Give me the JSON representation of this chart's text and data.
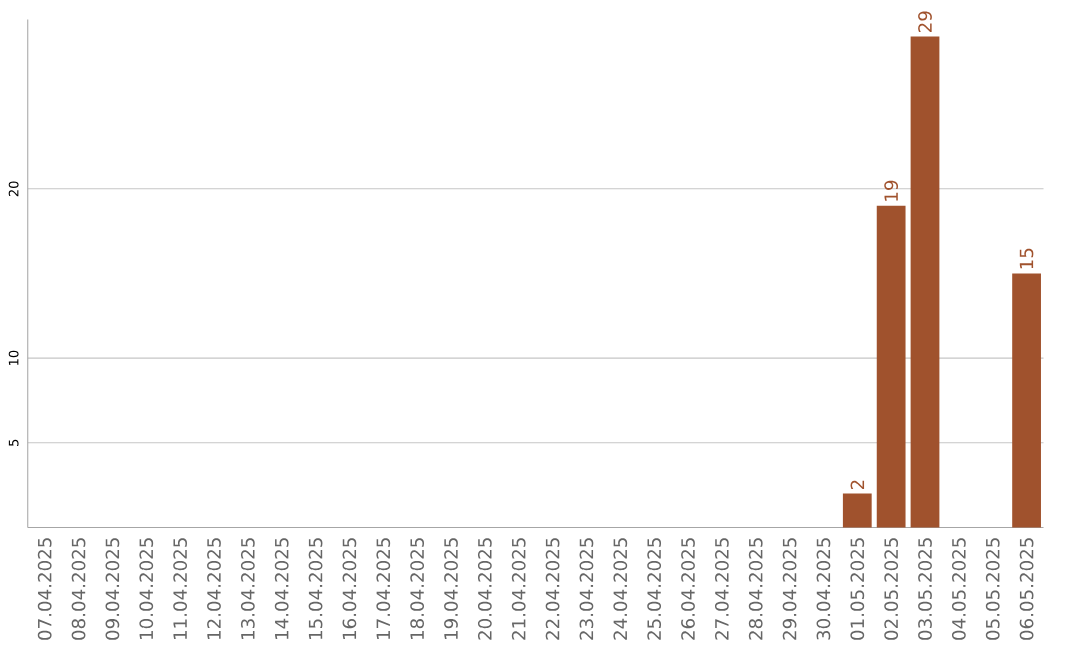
{
  "chart_data": {
    "type": "bar",
    "categories": [
      "07.04.2025",
      "08.04.2025",
      "09.04.2025",
      "10.04.2025",
      "11.04.2025",
      "12.04.2025",
      "13.04.2025",
      "14.04.2025",
      "15.04.2025",
      "16.04.2025",
      "17.04.2025",
      "18.04.2025",
      "19.04.2025",
      "20.04.2025",
      "21.04.2025",
      "22.04.2025",
      "23.04.2025",
      "24.04.2025",
      "25.04.2025",
      "26.04.2025",
      "27.04.2025",
      "28.04.2025",
      "29.04.2025",
      "30.04.2025",
      "01.05.2025",
      "02.05.2025",
      "03.05.2025",
      "04.05.2025",
      "05.05.2025",
      "06.05.2025"
    ],
    "values": [
      0,
      0,
      0,
      0,
      0,
      0,
      0,
      0,
      0,
      0,
      0,
      0,
      0,
      0,
      0,
      0,
      0,
      0,
      0,
      0,
      0,
      0,
      0,
      0,
      2,
      19,
      29,
      0,
      0,
      15
    ],
    "value_labels": [
      null,
      null,
      null,
      null,
      null,
      null,
      null,
      null,
      null,
      null,
      null,
      null,
      null,
      null,
      null,
      null,
      null,
      null,
      null,
      null,
      null,
      null,
      null,
      null,
      "2",
      "19",
      "29",
      null,
      null,
      "15"
    ],
    "color": "#a0522d",
    "ylim": [
      0,
      30
    ],
    "yticks": [
      5,
      10,
      20
    ],
    "grid": "y"
  }
}
